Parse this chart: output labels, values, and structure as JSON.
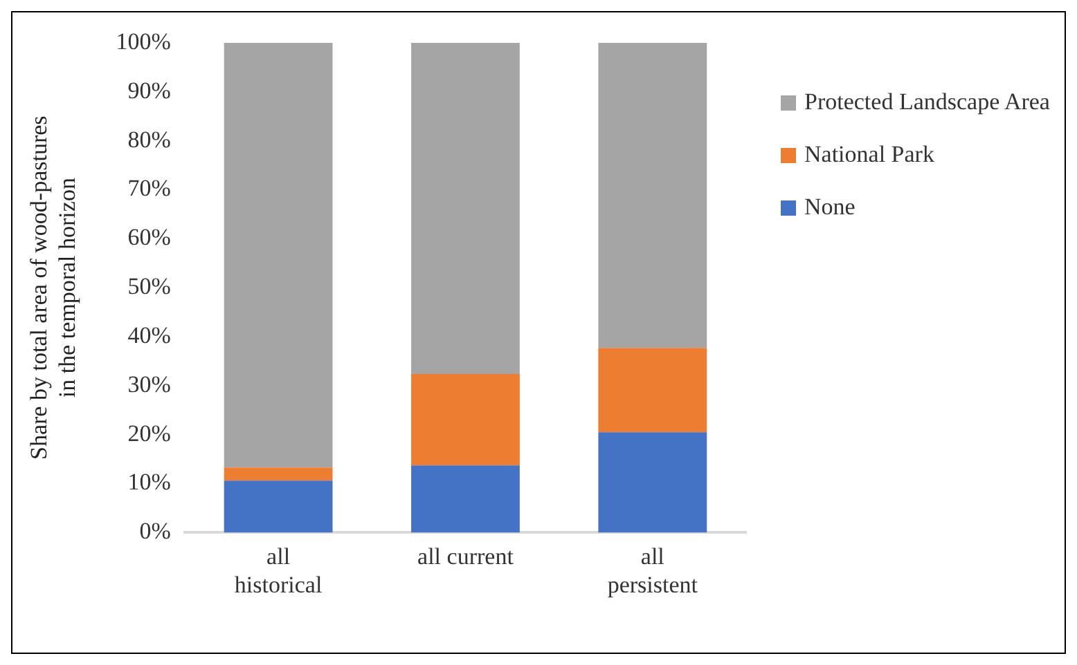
{
  "chart_data": {
    "type": "bar",
    "stacked": true,
    "ylabel": "Share by total area of wood-pastures in the temporal horizon",
    "categories": [
      "all historical",
      "all current",
      "all persistent"
    ],
    "series": [
      {
        "name": "None",
        "color": "#4472c4",
        "values": [
          10.6,
          13.7,
          20.5
        ]
      },
      {
        "name": "National Park",
        "color": "#ed7d31",
        "values": [
          2.7,
          18.7,
          17.2
        ]
      },
      {
        "name": "Protected Landscape Area",
        "color": "#a5a5a5",
        "values": [
          86.7,
          67.6,
          62.3
        ]
      }
    ],
    "ylim": [
      0,
      100
    ],
    "yticks": [
      {
        "value": 0,
        "label": "0%"
      },
      {
        "value": 10,
        "label": "10%"
      },
      {
        "value": 20,
        "label": "20%"
      },
      {
        "value": 30,
        "label": "30%"
      },
      {
        "value": 40,
        "label": "40%"
      },
      {
        "value": 50,
        "label": "50%"
      },
      {
        "value": 60,
        "label": "60%"
      },
      {
        "value": 70,
        "label": "70%"
      },
      {
        "value": 80,
        "label": "80%"
      },
      {
        "value": 90,
        "label": "90%"
      },
      {
        "value": 100,
        "label": "100%"
      }
    ],
    "legend": "right",
    "grid": false
  }
}
